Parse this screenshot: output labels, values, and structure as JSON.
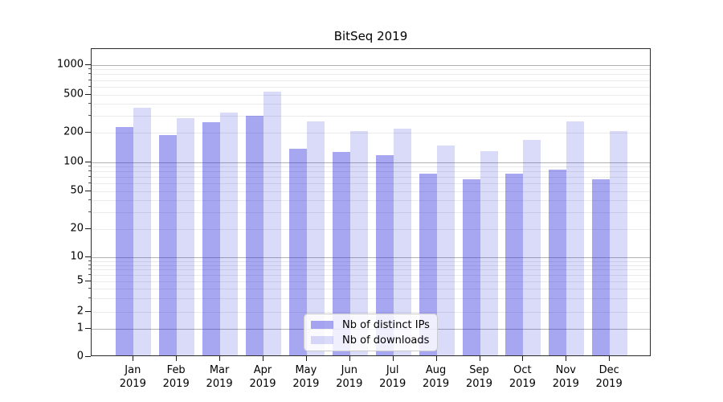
{
  "chart_data": {
    "type": "bar",
    "title": "BitSeq 2019",
    "categories": [
      {
        "month": "Jan",
        "year": "2019"
      },
      {
        "month": "Feb",
        "year": "2019"
      },
      {
        "month": "Mar",
        "year": "2019"
      },
      {
        "month": "Apr",
        "year": "2019"
      },
      {
        "month": "May",
        "year": "2019"
      },
      {
        "month": "Jun",
        "year": "2019"
      },
      {
        "month": "Jul",
        "year": "2019"
      },
      {
        "month": "Aug",
        "year": "2019"
      },
      {
        "month": "Sep",
        "year": "2019"
      },
      {
        "month": "Oct",
        "year": "2019"
      },
      {
        "month": "Nov",
        "year": "2019"
      },
      {
        "month": "Dec",
        "year": "2019"
      }
    ],
    "series": [
      {
        "name": "Nb of distinct IPs",
        "color": "rgba(34,34,221,0.40)",
        "color_hex_on_white": "#a6a6f1",
        "values": [
          220,
          181,
          248,
          290,
          133,
          122,
          113,
          73,
          64,
          73,
          81,
          64
        ]
      },
      {
        "name": "Nb of downloads",
        "color": "rgba(34,34,221,0.17)",
        "color_hex_on_white": "#dadaf8",
        "values": [
          348,
          270,
          312,
          510,
          252,
          200,
          213,
          142,
          124,
          161,
          252,
          199
        ]
      }
    ],
    "y_axis": {
      "scale": "log-like (symlog, compressed below 10, linear 0–1)",
      "tick_values": [
        1000,
        500,
        200,
        100,
        50,
        20,
        10,
        5,
        2,
        1,
        0
      ],
      "tick_labels": [
        "1000",
        "500",
        "200",
        "100",
        "50",
        "20",
        "10",
        "5",
        "2",
        "1",
        "0"
      ],
      "range_top": 1000,
      "range_bottom": 0
    },
    "legend": {
      "position": "lower-center"
    },
    "grid": {
      "horizontal": true,
      "major_color": "#b2b2b2",
      "minor_color": "#eaeaea"
    }
  }
}
